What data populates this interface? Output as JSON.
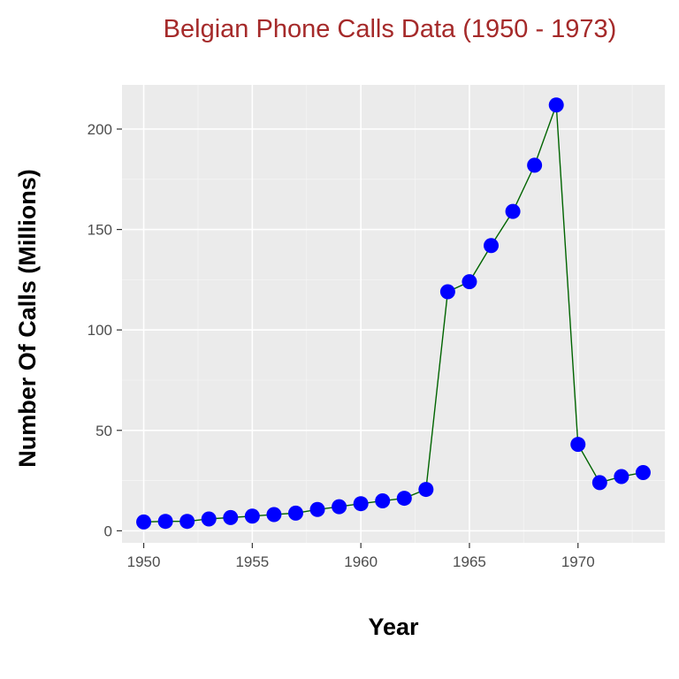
{
  "chart_data": {
    "type": "line",
    "title": "Belgian Phone Calls Data (1950 - 1973)",
    "xlabel": "Year",
    "ylabel": "Number Of Calls (Millions)",
    "x": [
      1950,
      1951,
      1952,
      1953,
      1954,
      1955,
      1956,
      1957,
      1958,
      1959,
      1960,
      1961,
      1962,
      1963,
      1964,
      1965,
      1966,
      1967,
      1968,
      1969,
      1970,
      1971,
      1972,
      1973
    ],
    "series": [
      {
        "values": [
          4.4,
          4.7,
          4.7,
          5.9,
          6.6,
          7.3,
          8.1,
          8.8,
          10.6,
          12.0,
          13.5,
          14.9,
          16.2,
          20.6,
          119.0,
          124.0,
          142.0,
          159.0,
          182.0,
          212.0,
          43.0,
          24.0,
          27.0,
          29.0
        ],
        "line_color": "#006400",
        "point_color": "#0000ff"
      }
    ],
    "xlim": [
      1949,
      1974
    ],
    "ylim": [
      -6.0,
      222.0
    ],
    "x_ticks": [
      "1950",
      "1955",
      "1960",
      "1965",
      "1970"
    ],
    "y_ticks": [
      "0",
      "50",
      "100",
      "150",
      "200"
    ],
    "grid": true,
    "legend": "none",
    "panel_background": "#ebebeb"
  }
}
